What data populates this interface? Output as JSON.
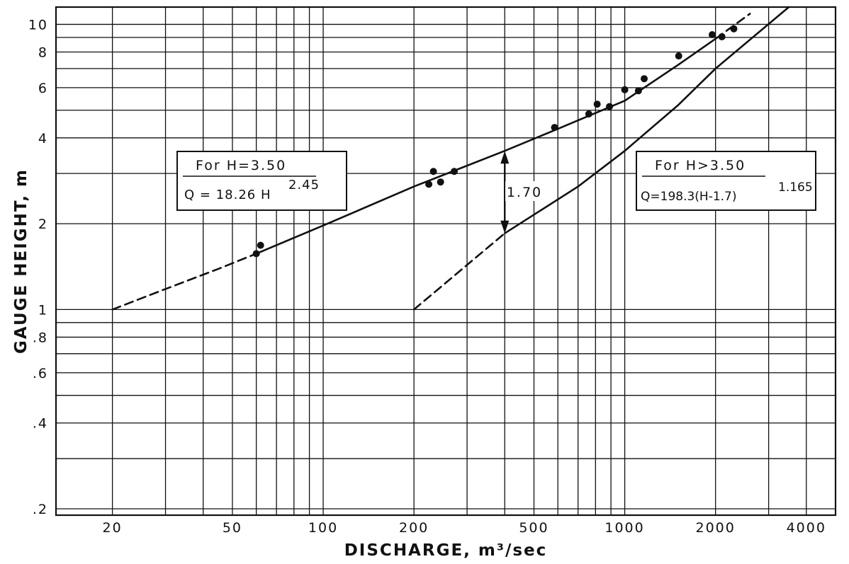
{
  "chart_data": {
    "type": "scatter",
    "xlabel": "DISCHARGE, m³/sec",
    "ylabel": "GAUGE HEIGHT, m",
    "xscale": "log",
    "yscale": "log",
    "xlim": [
      13,
      5000
    ],
    "ylim": [
      0.19,
      11.5
    ],
    "grid": true,
    "xticks": [
      20,
      50,
      100,
      200,
      500,
      1000,
      2000,
      4000
    ],
    "xtick_labels": [
      "20",
      "50",
      "100",
      "200",
      "500",
      "1000",
      "2000",
      "4000"
    ],
    "yticks": [
      0.2,
      0.4,
      0.6,
      0.8,
      1,
      2,
      4,
      6,
      8,
      10
    ],
    "ytick_labels": [
      ".2",
      ".4",
      ".6",
      ".8",
      "1",
      "2",
      "4",
      "6",
      "8",
      "10"
    ],
    "points": [
      {
        "x": 60,
        "y": 1.57
      },
      {
        "x": 62,
        "y": 1.68
      },
      {
        "x": 224,
        "y": 2.75
      },
      {
        "x": 232,
        "y": 3.05
      },
      {
        "x": 245,
        "y": 2.8
      },
      {
        "x": 272,
        "y": 3.05
      },
      {
        "x": 585,
        "y": 4.35
      },
      {
        "x": 760,
        "y": 4.85
      },
      {
        "x": 810,
        "y": 5.25
      },
      {
        "x": 890,
        "y": 5.15
      },
      {
        "x": 1000,
        "y": 5.9
      },
      {
        "x": 1110,
        "y": 5.85
      },
      {
        "x": 1160,
        "y": 6.45
      },
      {
        "x": 1510,
        "y": 7.75
      },
      {
        "x": 1950,
        "y": 9.2
      },
      {
        "x": 2100,
        "y": 9.05
      },
      {
        "x": 2300,
        "y": 9.65
      }
    ],
    "curves": [
      {
        "x": [
          20,
          30,
          45,
          60
        ],
        "y": [
          1.0,
          1.18,
          1.39,
          1.57
        ],
        "style": "dashed"
      },
      {
        "x": [
          60,
          100,
          200,
          400,
          600,
          1000,
          1500,
          2000
        ],
        "y": [
          1.57,
          1.97,
          2.7,
          3.6,
          4.3,
          5.4,
          7.2,
          8.9
        ],
        "style": "solid"
      },
      {
        "x": [
          2000,
          2600
        ],
        "y": [
          8.9,
          10.9
        ],
        "style": "dashed"
      },
      {
        "x": [
          200,
          400
        ],
        "y": [
          1.0,
          1.85
        ],
        "style": "dashed"
      },
      {
        "x": [
          400,
          700,
          1000,
          1500,
          2000,
          3500
        ],
        "y": [
          1.85,
          2.7,
          3.6,
          5.2,
          7.0,
          11.5
        ],
        "style": "solid"
      }
    ],
    "annotations": [
      {
        "text": "1.70",
        "x": 400,
        "y": 2.6
      }
    ],
    "equation_left": {
      "title": "For H=3.50",
      "formula": "Q = 18.26 H",
      "exponent": "2.45"
    },
    "equation_right": {
      "title": "For H>3.50",
      "formula": "Q=198.3(H-1.7)",
      "exponent": "1.165"
    }
  }
}
